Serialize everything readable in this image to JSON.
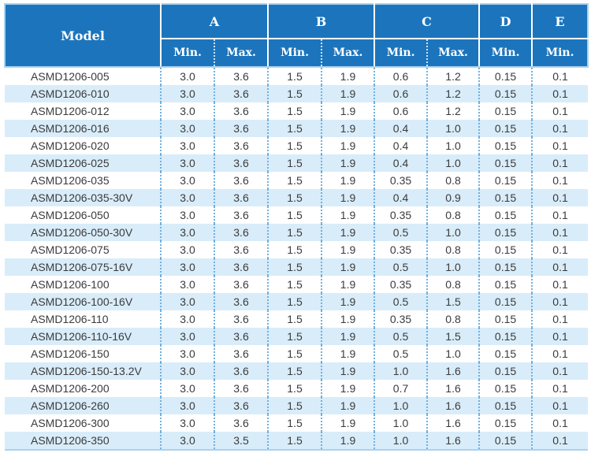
{
  "colors": {
    "header_bg": "#1c75bc",
    "header_text": "#ffffff",
    "row_stripe": "#d9ecf9",
    "column_separator_dotted": "#6fb0e0",
    "outer_border": "#a9d3ef",
    "body_text": "#3b3b3b"
  },
  "table": {
    "header": {
      "model_label": "Model",
      "groups": [
        {
          "label": "A",
          "subs": [
            "Min.",
            "Max."
          ]
        },
        {
          "label": "B",
          "subs": [
            "Min.",
            "Max."
          ]
        },
        {
          "label": "C",
          "subs": [
            "Min.",
            "Max."
          ]
        },
        {
          "label": "D",
          "subs": [
            "Min."
          ]
        },
        {
          "label": "E",
          "subs": [
            "Min."
          ]
        }
      ]
    },
    "rows": [
      {
        "model": "ASMD1206-005",
        "values": [
          "3.0",
          "3.6",
          "1.5",
          "1.9",
          "0.6",
          "1.2",
          "0.15",
          "0.1"
        ]
      },
      {
        "model": "ASMD1206-010",
        "values": [
          "3.0",
          "3.6",
          "1.5",
          "1.9",
          "0.6",
          "1.2",
          "0.15",
          "0.1"
        ]
      },
      {
        "model": "ASMD1206-012",
        "values": [
          "3.0",
          "3.6",
          "1.5",
          "1.9",
          "0.6",
          "1.2",
          "0.15",
          "0.1"
        ]
      },
      {
        "model": "ASMD1206-016",
        "values": [
          "3.0",
          "3.6",
          "1.5",
          "1.9",
          "0.4",
          "1.0",
          "0.15",
          "0.1"
        ]
      },
      {
        "model": "ASMD1206-020",
        "values": [
          "3.0",
          "3.6",
          "1.5",
          "1.9",
          "0.4",
          "1.0",
          "0.15",
          "0.1"
        ]
      },
      {
        "model": "ASMD1206-025",
        "values": [
          "3.0",
          "3.6",
          "1.5",
          "1.9",
          "0.4",
          "1.0",
          "0.15",
          "0.1"
        ]
      },
      {
        "model": "ASMD1206-035",
        "values": [
          "3.0",
          "3.6",
          "1.5",
          "1.9",
          "0.35",
          "0.8",
          "0.15",
          "0.1"
        ]
      },
      {
        "model": "ASMD1206-035-30V",
        "values": [
          "3.0",
          "3.6",
          "1.5",
          "1.9",
          "0.4",
          "0.9",
          "0.15",
          "0.1"
        ]
      },
      {
        "model": "ASMD1206-050",
        "values": [
          "3.0",
          "3.6",
          "1.5",
          "1.9",
          "0.35",
          "0.8",
          "0.15",
          "0.1"
        ]
      },
      {
        "model": "ASMD1206-050-30V",
        "values": [
          "3.0",
          "3.6",
          "1.5",
          "1.9",
          "0.5",
          "1.0",
          "0.15",
          "0.1"
        ]
      },
      {
        "model": "ASMD1206-075",
        "values": [
          "3.0",
          "3.6",
          "1.5",
          "1.9",
          "0.35",
          "0.8",
          "0.15",
          "0.1"
        ]
      },
      {
        "model": "ASMD1206-075-16V",
        "values": [
          "3.0",
          "3.6",
          "1.5",
          "1.9",
          "0.5",
          "1.0",
          "0.15",
          "0.1"
        ]
      },
      {
        "model": "ASMD1206-100",
        "values": [
          "3.0",
          "3.6",
          "1.5",
          "1.9",
          "0.35",
          "0.8",
          "0.15",
          "0.1"
        ]
      },
      {
        "model": "ASMD1206-100-16V",
        "values": [
          "3.0",
          "3.6",
          "1.5",
          "1.9",
          "0.5",
          "1.5",
          "0.15",
          "0.1"
        ]
      },
      {
        "model": "ASMD1206-110",
        "values": [
          "3.0",
          "3.6",
          "1.5",
          "1.9",
          "0.35",
          "0.8",
          "0.15",
          "0.1"
        ]
      },
      {
        "model": "ASMD1206-110-16V",
        "values": [
          "3.0",
          "3.6",
          "1.5",
          "1.9",
          "0.5",
          "1.5",
          "0.15",
          "0.1"
        ]
      },
      {
        "model": "ASMD1206-150",
        "values": [
          "3.0",
          "3.6",
          "1.5",
          "1.9",
          "0.5",
          "1.0",
          "0.15",
          "0.1"
        ]
      },
      {
        "model": "ASMD1206-150-13.2V",
        "values": [
          "3.0",
          "3.6",
          "1.5",
          "1.9",
          "1.0",
          "1.6",
          "0.15",
          "0.1"
        ]
      },
      {
        "model": "ASMD1206-200",
        "values": [
          "3.0",
          "3.6",
          "1.5",
          "1.9",
          "0.7",
          "1.6",
          "0.15",
          "0.1"
        ]
      },
      {
        "model": "ASMD1206-260",
        "values": [
          "3.0",
          "3.6",
          "1.5",
          "1.9",
          "1.0",
          "1.6",
          "0.15",
          "0.1"
        ]
      },
      {
        "model": "ASMD1206-300",
        "values": [
          "3.0",
          "3.6",
          "1.5",
          "1.9",
          "1.0",
          "1.6",
          "0.15",
          "0.1"
        ]
      },
      {
        "model": "ASMD1206-350",
        "values": [
          "3.0",
          "3.5",
          "1.5",
          "1.9",
          "1.0",
          "1.6",
          "0.15",
          "0.1"
        ]
      }
    ]
  }
}
